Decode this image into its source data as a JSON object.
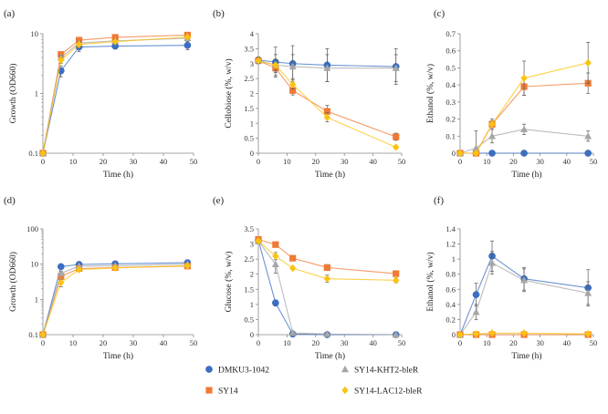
{
  "legend": [
    {
      "name": "DMKU3-1042",
      "color": "#3a6fc4",
      "marker": "circle"
    },
    {
      "name": "SY14",
      "color": "#f07a35",
      "marker": "square"
    },
    {
      "name": "SY14-KHT2-bleR",
      "color": "#a6a6a6",
      "marker": "triangle"
    },
    {
      "name": "SY14-LAC12-bleR",
      "color": "#fcc20e",
      "marker": "diamond"
    }
  ],
  "chart_data": [
    {
      "id": "a",
      "panel_label": "(a)",
      "type": "line",
      "yscale": "log",
      "xlabel": "Time (h)",
      "ylabel": "Growth (OD660)",
      "xlim": [
        0,
        50
      ],
      "xticks": [
        0,
        10,
        20,
        30,
        40,
        50
      ],
      "ylim": [
        0.1,
        10
      ],
      "yticks": [
        0.1,
        1,
        10
      ],
      "ytick_labels": [
        "0.1",
        "1",
        "10"
      ],
      "x": [
        0,
        6,
        12,
        24,
        48
      ],
      "series": [
        {
          "name": "DMKU3-1042",
          "values": [
            0.1,
            2.4,
            6.0,
            6.2,
            6.4
          ],
          "err": [
            0,
            0.5,
            1.0,
            0.6,
            1.0
          ]
        },
        {
          "name": "SY14",
          "values": [
            0.1,
            4.5,
            7.8,
            8.7,
            9.5
          ],
          "err": [
            0,
            0.5,
            0.7,
            0.7,
            0.8
          ]
        },
        {
          "name": "SY14-KHT2-bleR",
          "values": [
            0.1,
            4.0,
            7.0,
            7.6,
            8.4
          ],
          "err": [
            0,
            0.4,
            0.6,
            0.6,
            0.7
          ]
        },
        {
          "name": "SY14-LAC12-bleR",
          "values": [
            0.1,
            3.6,
            6.6,
            7.4,
            8.8
          ],
          "err": [
            0,
            0.4,
            0.6,
            0.6,
            0.7
          ]
        }
      ]
    },
    {
      "id": "b",
      "panel_label": "(b)",
      "type": "line",
      "yscale": "linear",
      "xlabel": "Time (h)",
      "ylabel": "Cellobiose (%, w/v)",
      "xlim": [
        0,
        50
      ],
      "xticks": [
        0,
        10,
        20,
        30,
        40,
        50
      ],
      "ylim": [
        0,
        4
      ],
      "yticks": [
        0,
        0.5,
        1,
        1.5,
        2,
        2.5,
        3,
        3.5,
        4
      ],
      "ytick_labels": [
        "0",
        "0.5",
        "1",
        "1.5",
        "2",
        "2.5",
        "3",
        "3.5",
        "4"
      ],
      "x": [
        0,
        6,
        12,
        24,
        48
      ],
      "series": [
        {
          "name": "DMKU3-1042",
          "values": [
            3.12,
            3.05,
            3.0,
            2.95,
            2.9
          ],
          "err": [
            0.1,
            0.5,
            0.6,
            0.55,
            0.6
          ]
        },
        {
          "name": "SY14",
          "values": [
            3.1,
            2.85,
            2.1,
            1.4,
            0.55
          ],
          "err": [
            0.1,
            0.15,
            0.15,
            0.2,
            0.12
          ]
        },
        {
          "name": "SY14-KHT2-bleR",
          "values": [
            3.1,
            2.95,
            2.9,
            2.85,
            2.85
          ],
          "err": [
            0.1,
            0.35,
            0.4,
            0.45,
            0.45
          ]
        },
        {
          "name": "SY14-LAC12-bleR",
          "values": [
            3.1,
            2.95,
            2.3,
            1.2,
            0.2
          ],
          "err": [
            0.1,
            0.2,
            0.15,
            0.15,
            0.05
          ]
        }
      ]
    },
    {
      "id": "c",
      "panel_label": "(c)",
      "type": "line",
      "yscale": "linear",
      "xlabel": "Time (h)",
      "ylabel": "Ethanol (%, w/v)",
      "xlim": [
        0,
        50
      ],
      "xticks": [
        0,
        10,
        20,
        30,
        40,
        50
      ],
      "ylim": [
        0,
        0.7
      ],
      "yticks": [
        0,
        0.1,
        0.2,
        0.3,
        0.4,
        0.5,
        0.6,
        0.7
      ],
      "ytick_labels": [
        "0",
        "0.1",
        "0.2",
        "0.3",
        "0.4",
        "0.5",
        "0.6",
        "0.7"
      ],
      "x": [
        0,
        6,
        12,
        24,
        48
      ],
      "series": [
        {
          "name": "DMKU3-1042",
          "values": [
            0,
            0,
            0,
            0,
            0
          ],
          "err": [
            0,
            0,
            0,
            0,
            0
          ]
        },
        {
          "name": "SY14",
          "values": [
            0,
            0,
            0.17,
            0.39,
            0.41
          ],
          "err": [
            0,
            0,
            0.02,
            0.05,
            0.06
          ]
        },
        {
          "name": "SY14-KHT2-bleR",
          "values": [
            0,
            0.03,
            0.1,
            0.14,
            0.1
          ],
          "err": [
            0,
            0.1,
            0.04,
            0.03,
            0.03
          ]
        },
        {
          "name": "SY14-LAC12-bleR",
          "values": [
            0,
            0,
            0.17,
            0.44,
            0.53
          ],
          "err": [
            0,
            0.01,
            0.03,
            0.1,
            0.12
          ]
        }
      ]
    },
    {
      "id": "d",
      "panel_label": "(d)",
      "type": "line",
      "yscale": "log",
      "xlabel": "Time (h)",
      "ylabel": "Growth (OD660)",
      "xlim": [
        0,
        50
      ],
      "xticks": [
        0,
        10,
        20,
        30,
        40,
        50
      ],
      "ylim": [
        0.1,
        100
      ],
      "yticks": [
        0.1,
        1,
        10,
        100
      ],
      "ytick_labels": [
        "0.1",
        "1",
        "10",
        "100"
      ],
      "x": [
        0,
        6,
        12,
        24,
        48
      ],
      "series": [
        {
          "name": "DMKU3-1042",
          "values": [
            0.1,
            8.5,
            9.8,
            10.2,
            11.0
          ],
          "err": [
            0,
            0.8,
            0.9,
            0.9,
            1.0
          ]
        },
        {
          "name": "SY14",
          "values": [
            0.1,
            4.5,
            7.5,
            8.0,
            8.8
          ],
          "err": [
            0,
            0.8,
            0.6,
            0.6,
            0.7
          ]
        },
        {
          "name": "SY14-KHT2-bleR",
          "values": [
            0.1,
            5.5,
            8.8,
            9.0,
            10.0
          ],
          "err": [
            0,
            0.8,
            0.8,
            0.7,
            0.8
          ]
        },
        {
          "name": "SY14-LAC12-bleR",
          "values": [
            0.1,
            3.0,
            7.0,
            7.8,
            9.0
          ],
          "err": [
            0,
            0.7,
            0.6,
            0.6,
            0.7
          ]
        }
      ]
    },
    {
      "id": "e",
      "panel_label": "(e)",
      "type": "line",
      "yscale": "linear",
      "xlabel": "Time (h)",
      "ylabel": "Glucose (%, w/v)",
      "xlim": [
        0,
        50
      ],
      "xticks": [
        0,
        10,
        20,
        30,
        40,
        50
      ],
      "ylim": [
        0,
        3.5
      ],
      "yticks": [
        0,
        0.5,
        1,
        1.5,
        2,
        2.5,
        3,
        3.5
      ],
      "ytick_labels": [
        "0",
        "0.5",
        "1",
        "1.5",
        "2",
        "2.5",
        "3",
        "3.5"
      ],
      "x": [
        0,
        6,
        12,
        24,
        48
      ],
      "series": [
        {
          "name": "DMKU3-1042",
          "values": [
            3.12,
            1.05,
            0.02,
            0.0,
            0.0
          ],
          "err": [
            0.08,
            0.1,
            0.02,
            0.0,
            0.0
          ]
        },
        {
          "name": "SY14",
          "values": [
            3.15,
            2.98,
            2.53,
            2.22,
            2.02
          ],
          "err": [
            0.05,
            0.06,
            0.06,
            0.1,
            0.08
          ]
        },
        {
          "name": "SY14-KHT2-bleR",
          "values": [
            3.1,
            2.33,
            0.06,
            0.02,
            0.0
          ],
          "err": [
            0.05,
            0.3,
            0.03,
            0.02,
            0.0
          ]
        },
        {
          "name": "SY14-LAC12-bleR",
          "values": [
            3.1,
            2.6,
            2.2,
            1.85,
            1.8
          ],
          "err": [
            0.05,
            0.12,
            0.06,
            0.12,
            0.08
          ]
        }
      ]
    },
    {
      "id": "f",
      "panel_label": "(f)",
      "type": "line",
      "yscale": "linear",
      "xlabel": "Time (h)",
      "ylabel": "Ethanol (%, w/v)",
      "xlim": [
        0,
        50
      ],
      "xticks": [
        0,
        10,
        20,
        30,
        40,
        50
      ],
      "ylim": [
        0,
        1.4
      ],
      "yticks": [
        0,
        0.2,
        0.4,
        0.6,
        0.8,
        1,
        1.2,
        1.4
      ],
      "ytick_labels": [
        "0",
        "0.2",
        "0.4",
        "0.6",
        "0.8",
        "1",
        "1.2",
        "1.4"
      ],
      "x": [
        0,
        6,
        12,
        24,
        48
      ],
      "series": [
        {
          "name": "DMKU3-1042",
          "values": [
            0,
            0.53,
            1.04,
            0.74,
            0.62
          ],
          "err": [
            0,
            0.15,
            0.2,
            0.15,
            0.24
          ]
        },
        {
          "name": "SY14",
          "values": [
            0,
            0,
            0,
            0,
            0
          ],
          "err": [
            0,
            0,
            0,
            0,
            0
          ]
        },
        {
          "name": "SY14-KHT2-bleR",
          "values": [
            0,
            0.3,
            0.95,
            0.72,
            0.55
          ],
          "err": [
            0,
            0.1,
            0.15,
            0.15,
            0.15
          ]
        },
        {
          "name": "SY14-LAC12-bleR",
          "values": [
            0,
            0.01,
            0.02,
            0.02,
            0.01
          ],
          "err": [
            0,
            0,
            0,
            0,
            0
          ]
        }
      ]
    }
  ]
}
